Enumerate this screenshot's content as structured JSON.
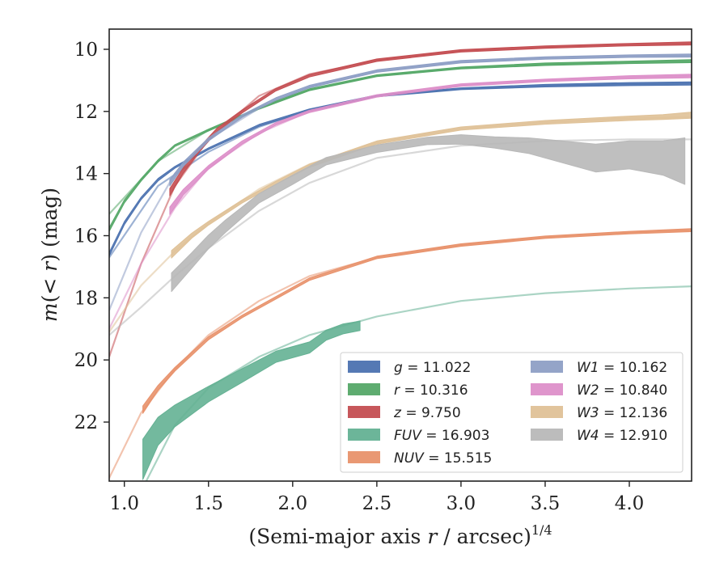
{
  "chart_data": {
    "type": "line",
    "title": "",
    "xlabel": "(Semi-major axis r / arcsec)",
    "xlabel_parts": {
      "open": "(Semi-major axis ",
      "var": "r",
      "rest": " / arcsec)",
      "exponent": "1/4"
    },
    "ylabel": "m(< r) (mag)",
    "ylabel_parts": {
      "var": "m",
      "paren": "(< ",
      "var2": "r",
      "close": ")",
      "unit": " (mag)"
    },
    "xlim": [
      0.91,
      4.37
    ],
    "ylim": [
      23.9,
      9.35
    ],
    "y_inverted": true,
    "xticks": [
      1.0,
      1.5,
      2.0,
      2.5,
      3.0,
      3.5,
      4.0
    ],
    "xtick_labels": [
      "1.0",
      "1.5",
      "2.0",
      "2.5",
      "3.0",
      "3.5",
      "4.0"
    ],
    "yticks": [
      10,
      12,
      14,
      16,
      18,
      20,
      22
    ],
    "ytick_labels": [
      "10",
      "12",
      "14",
      "16",
      "18",
      "20",
      "22"
    ],
    "grid": false,
    "legend_position": "lower-right",
    "legend_columns": 2,
    "series": [
      {
        "name": "g = 11.022",
        "band": "g",
        "value": "11.022",
        "color": "#4c72b0",
        "model": {
          "x": [
            0.91,
            1.2,
            1.5,
            1.8,
            2.1,
            2.5,
            3.0,
            3.5,
            4.0,
            4.37
          ],
          "y": [
            16.7,
            14.4,
            13.3,
            12.5,
            11.95,
            11.5,
            11.27,
            11.17,
            11.12,
            11.1
          ]
        },
        "measured": {
          "x": [
            0.91,
            1.0,
            1.1,
            1.2,
            1.3,
            1.5,
            1.8,
            2.1,
            2.5,
            3.0,
            3.5,
            4.0,
            4.37
          ],
          "y": [
            16.6,
            15.6,
            14.8,
            14.2,
            13.8,
            13.2,
            12.45,
            11.95,
            11.5,
            11.27,
            11.17,
            11.12,
            11.1
          ],
          "halfwidth": [
            0.06,
            0.05,
            0.04,
            0.04,
            0.03,
            0.03,
            0.03,
            0.03,
            0.03,
            0.03,
            0.04,
            0.05,
            0.05
          ]
        }
      },
      {
        "name": "r = 10.316",
        "band": "r",
        "value": "10.316",
        "color": "#55a868",
        "model": {
          "x": [
            0.91,
            1.2,
            1.5,
            1.8,
            2.1,
            2.5,
            3.0,
            3.5,
            4.0,
            4.37
          ],
          "y": [
            15.3,
            13.6,
            12.6,
            11.9,
            11.3,
            10.85,
            10.6,
            10.48,
            10.42,
            10.38
          ]
        },
        "measured": {
          "x": [
            0.91,
            1.0,
            1.1,
            1.2,
            1.3,
            1.5,
            1.8,
            2.1,
            2.5,
            3.0,
            3.5,
            4.0,
            4.37
          ],
          "y": [
            15.8,
            14.9,
            14.2,
            13.6,
            13.1,
            12.6,
            11.9,
            11.3,
            10.85,
            10.6,
            10.48,
            10.42,
            10.38
          ],
          "halfwidth": [
            0.06,
            0.05,
            0.04,
            0.04,
            0.03,
            0.03,
            0.03,
            0.03,
            0.03,
            0.03,
            0.04,
            0.04,
            0.05
          ]
        }
      },
      {
        "name": "z = 9.750",
        "band": "z",
        "value": "9.750",
        "color": "#c44e52",
        "model": {
          "x": [
            0.91,
            1.1,
            1.3,
            1.5,
            1.8,
            2.1,
            2.5,
            3.0,
            3.5,
            4.0,
            4.37
          ],
          "y": [
            19.9,
            16.9,
            14.4,
            12.9,
            11.5,
            10.8,
            10.35,
            10.05,
            9.93,
            9.85,
            9.81
          ]
        },
        "measured": {
          "x": [
            1.27,
            1.35,
            1.45,
            1.55,
            1.7,
            1.9,
            2.1,
            2.5,
            3.0,
            3.5,
            4.0,
            4.37
          ],
          "y": [
            14.6,
            13.9,
            13.2,
            12.6,
            12.0,
            11.3,
            10.85,
            10.35,
            10.05,
            9.93,
            9.85,
            9.81
          ],
          "halfwidth": [
            0.12,
            0.09,
            0.07,
            0.06,
            0.05,
            0.04,
            0.04,
            0.04,
            0.04,
            0.04,
            0.04,
            0.05
          ]
        }
      },
      {
        "name": "FUV = 16.903",
        "band": "FUV",
        "value": "16.903",
        "color": "#64b193",
        "model": {
          "x": [
            1.13,
            1.3,
            1.5,
            1.8,
            2.1,
            2.5,
            3.0,
            3.5,
            4.0,
            4.37
          ],
          "y": [
            23.9,
            22.1,
            20.9,
            19.9,
            19.2,
            18.6,
            18.1,
            17.85,
            17.7,
            17.63
          ]
        },
        "measured": {
          "x": [
            1.11,
            1.2,
            1.3,
            1.5,
            1.7,
            1.9,
            2.1,
            2.2,
            2.3,
            2.4
          ],
          "y": [
            23.2,
            22.3,
            21.8,
            21.1,
            20.5,
            19.9,
            19.6,
            19.2,
            19.0,
            18.9
          ],
          "halfwidth": [
            0.65,
            0.45,
            0.35,
            0.25,
            0.22,
            0.18,
            0.18,
            0.16,
            0.16,
            0.15
          ]
        }
      },
      {
        "name": "NUV = 15.515",
        "band": "NUV",
        "value": "15.515",
        "color": "#e8926c",
        "model": {
          "x": [
            0.91,
            1.1,
            1.3,
            1.5,
            1.8,
            2.1,
            2.5,
            3.0,
            3.5,
            4.0,
            4.37
          ],
          "y": [
            23.8,
            21.7,
            20.3,
            19.2,
            18.1,
            17.3,
            16.7,
            16.3,
            16.05,
            15.9,
            15.82
          ]
        },
        "measured": {
          "x": [
            1.11,
            1.2,
            1.3,
            1.5,
            1.7,
            1.9,
            2.1,
            2.5,
            3.0,
            3.5,
            4.0,
            4.37
          ],
          "y": [
            21.6,
            20.9,
            20.3,
            19.3,
            18.6,
            18.0,
            17.4,
            16.7,
            16.3,
            16.05,
            15.9,
            15.82
          ],
          "halfwidth": [
            0.12,
            0.08,
            0.06,
            0.05,
            0.04,
            0.04,
            0.04,
            0.04,
            0.04,
            0.04,
            0.04,
            0.05
          ]
        }
      },
      {
        "name": "W1 = 10.162",
        "band": "W1",
        "value": "10.162",
        "color": "#8e9fc5",
        "model": {
          "x": [
            0.91,
            1.1,
            1.3,
            1.5,
            1.8,
            2.1,
            2.5,
            3.0,
            3.5,
            4.0,
            4.37
          ],
          "y": [
            18.4,
            15.9,
            14.0,
            12.9,
            11.9,
            11.2,
            10.7,
            10.4,
            10.28,
            10.22,
            10.2
          ]
        },
        "measured": {
          "x": [
            1.27,
            1.35,
            1.5,
            1.7,
            1.9,
            2.1,
            2.5,
            3.0,
            3.5,
            4.0,
            4.37
          ],
          "y": [
            14.3,
            13.7,
            12.9,
            12.15,
            11.6,
            11.2,
            10.7,
            10.4,
            10.28,
            10.22,
            10.2
          ],
          "halfwidth": [
            0.1,
            0.07,
            0.05,
            0.04,
            0.04,
            0.04,
            0.04,
            0.04,
            0.04,
            0.04,
            0.05
          ]
        }
      },
      {
        "name": "W2 = 10.840",
        "band": "W2",
        "value": "10.840",
        "color": "#dd8fc9",
        "model": {
          "x": [
            0.91,
            1.1,
            1.3,
            1.5,
            1.8,
            2.1,
            2.5,
            3.0,
            3.5,
            4.0,
            4.37
          ],
          "y": [
            19.0,
            16.9,
            15.1,
            13.8,
            12.7,
            12.0,
            11.5,
            11.15,
            11.0,
            10.9,
            10.86
          ]
        },
        "measured": {
          "x": [
            1.27,
            1.35,
            1.5,
            1.7,
            1.9,
            2.1,
            2.5,
            3.0,
            3.5,
            4.0,
            4.37
          ],
          "y": [
            15.2,
            14.6,
            13.8,
            13.0,
            12.4,
            12.0,
            11.5,
            11.15,
            11.0,
            10.9,
            10.86
          ],
          "halfwidth": [
            0.12,
            0.09,
            0.06,
            0.05,
            0.04,
            0.04,
            0.04,
            0.04,
            0.04,
            0.05,
            0.06
          ]
        }
      },
      {
        "name": "W3 = 12.136",
        "band": "W3",
        "value": "12.136",
        "color": "#dfc197",
        "model": {
          "x": [
            0.91,
            1.1,
            1.3,
            1.5,
            1.8,
            2.1,
            2.5,
            3.0,
            3.5,
            4.0,
            4.37
          ],
          "y": [
            19.1,
            17.6,
            16.5,
            15.6,
            14.5,
            13.7,
            13.0,
            12.55,
            12.35,
            12.22,
            12.18
          ]
        },
        "measured": {
          "x": [
            1.28,
            1.4,
            1.5,
            1.7,
            1.9,
            2.1,
            2.5,
            3.0,
            3.5,
            4.0,
            4.2,
            4.37
          ],
          "y": [
            16.6,
            16.0,
            15.6,
            14.9,
            14.3,
            13.75,
            13.0,
            12.55,
            12.35,
            12.22,
            12.18,
            12.12
          ],
          "halfwidth": [
            0.12,
            0.08,
            0.06,
            0.05,
            0.05,
            0.05,
            0.05,
            0.05,
            0.06,
            0.07,
            0.08,
            0.1
          ]
        }
      },
      {
        "name": "W4 = 12.910",
        "band": "W4",
        "value": "12.910",
        "color": "#b8b8b8",
        "model": {
          "x": [
            0.91,
            1.1,
            1.3,
            1.5,
            1.8,
            2.1,
            2.5,
            3.0,
            3.5,
            4.0,
            4.37
          ],
          "y": [
            19.2,
            18.3,
            17.3,
            16.4,
            15.2,
            14.3,
            13.5,
            13.1,
            12.95,
            12.9,
            12.9
          ]
        },
        "measured": {
          "x": [
            1.28,
            1.4,
            1.5,
            1.6,
            1.8,
            2.0,
            2.2,
            2.5,
            2.8,
            3.0,
            3.2,
            3.4,
            3.6,
            3.8,
            4.0,
            4.2,
            4.33
          ],
          "y": [
            17.5,
            16.8,
            16.2,
            15.7,
            14.8,
            14.2,
            13.6,
            13.2,
            12.95,
            12.9,
            13.0,
            13.1,
            13.3,
            13.5,
            13.4,
            13.5,
            13.6
          ],
          "halfwidth": [
            0.3,
            0.25,
            0.22,
            0.2,
            0.15,
            0.15,
            0.12,
            0.12,
            0.12,
            0.15,
            0.18,
            0.25,
            0.35,
            0.45,
            0.45,
            0.55,
            0.75
          ]
        }
      }
    ]
  }
}
